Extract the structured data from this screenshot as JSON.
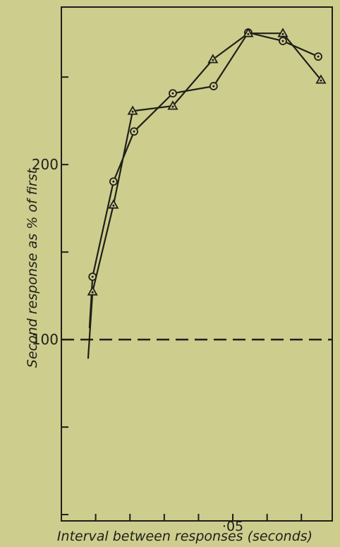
{
  "chart_data": {
    "type": "line",
    "xlabel": "Interval between responses (seconds)",
    "ylabel": "Second response as % of first",
    "xlim": [
      0,
      0.079
    ],
    "ylim": [
      -3.6,
      290
    ],
    "xticks": [
      0.01,
      0.02,
      0.03,
      0.04,
      {
        "value": 0.05,
        "label": "·05"
      },
      0.06,
      0.07
    ],
    "yticks": [
      0,
      50,
      100,
      150,
      200,
      250
    ],
    "ytick_labels_shown": [
      100,
      200
    ],
    "reference_line": 100,
    "color": "#1f1f19",
    "series": [
      {
        "marker": "circle",
        "lead_in": {
          "x": 0.0082,
          "value": 106.5
        },
        "x": [
          0.0091,
          0.0152,
          0.0212,
          0.0325,
          0.0444,
          0.0545,
          0.0646,
          0.0749
        ],
        "values": [
          135.9,
          190.3,
          218.9,
          240.7,
          244.8,
          275.4,
          270.6,
          261.7
        ]
      },
      {
        "marker": "triangle",
        "lead_in": {
          "x": 0.0078,
          "value": 89.1
        },
        "x": [
          0.0091,
          0.0152,
          0.0208,
          0.0325,
          0.0442,
          0.0545,
          0.0646,
          0.0757
        ],
        "values": [
          127.4,
          177,
          230.6,
          233.5,
          260.1,
          275,
          275,
          248.4
        ]
      }
    ]
  }
}
